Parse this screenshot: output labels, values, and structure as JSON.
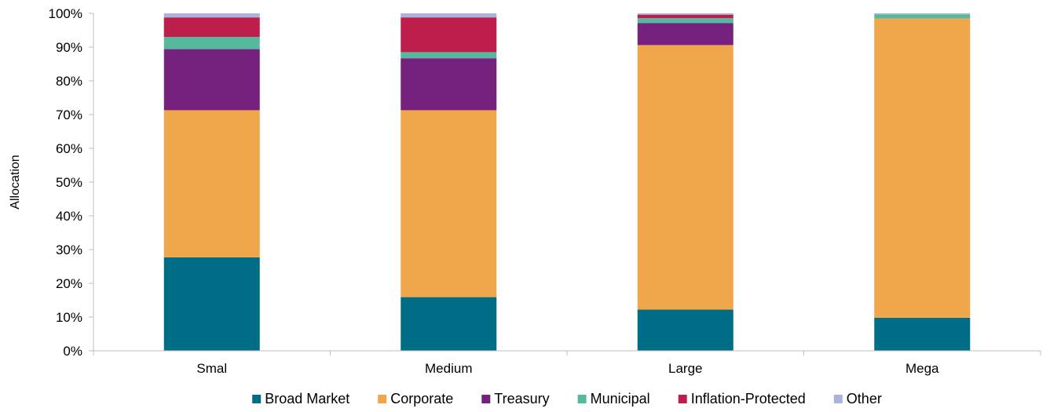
{
  "chart_data": {
    "type": "bar",
    "stacked": true,
    "title": "",
    "xlabel": "",
    "ylabel": "Allocation",
    "ylim": [
      0,
      100
    ],
    "y_ticks": [
      "0%",
      "10%",
      "20%",
      "30%",
      "40%",
      "50%",
      "60%",
      "70%",
      "80%",
      "90%",
      "100%"
    ],
    "y_tick_values": [
      0,
      10,
      20,
      30,
      40,
      50,
      60,
      70,
      80,
      90,
      100
    ],
    "grid": false,
    "legend_position": "bottom",
    "categories": [
      "Smal",
      "Medium",
      "Large",
      "Mega"
    ],
    "series": [
      {
        "name": "Broad Market",
        "color": "#006d86",
        "values": [
          27.7,
          15.9,
          12.2,
          9.8
        ]
      },
      {
        "name": "Corporate",
        "color": "#f0a64a",
        "values": [
          43.6,
          55.4,
          78.4,
          88.7
        ]
      },
      {
        "name": "Treasury",
        "color": "#77217f",
        "values": [
          18.1,
          15.4,
          6.5,
          0.0
        ]
      },
      {
        "name": "Municipal",
        "color": "#55b99d",
        "values": [
          3.6,
          1.8,
          1.5,
          1.2
        ]
      },
      {
        "name": "Inflation-Protected",
        "color": "#be1e4b",
        "values": [
          5.8,
          10.3,
          1.0,
          0.0
        ]
      },
      {
        "name": "Other",
        "color": "#a9b3dc",
        "values": [
          1.2,
          1.2,
          0.4,
          0.3
        ]
      }
    ]
  }
}
